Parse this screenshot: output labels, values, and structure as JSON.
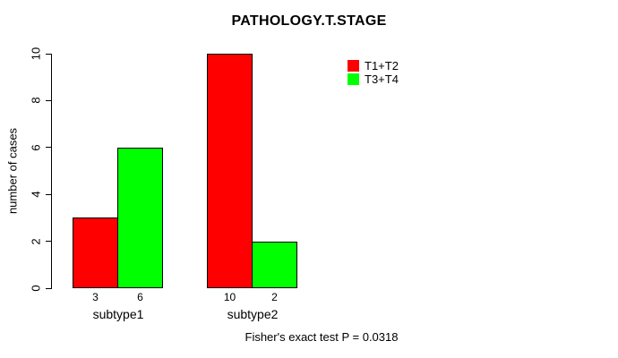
{
  "title": "PATHOLOGY.T.STAGE",
  "ylabel": "number of cases",
  "footer": "Fisher's exact test P = 0.0318",
  "colors": {
    "series1": "#FF0000",
    "series2": "#00FF00",
    "axis": "#000000",
    "background": "#FFFFFF",
    "text": "#000000"
  },
  "legend": {
    "items": [
      {
        "label": "T1+T2",
        "color": "#FF0000"
      },
      {
        "label": "T3+T4",
        "color": "#00FF00"
      }
    ]
  },
  "chart_data": {
    "type": "bar",
    "title": "PATHOLOGY.T.STAGE",
    "xlabel": "",
    "ylabel": "number of cases",
    "categories": [
      "subtype1",
      "subtype2"
    ],
    "series": [
      {
        "name": "T1+T2",
        "color": "#FF0000",
        "values": [
          3,
          10
        ]
      },
      {
        "name": "T3+T4",
        "color": "#00FF00",
        "values": [
          6,
          2
        ]
      }
    ],
    "bar_value_labels": [
      [
        "3",
        "6"
      ],
      [
        "10",
        "2"
      ]
    ],
    "yticks": [
      0,
      2,
      4,
      6,
      8,
      10
    ],
    "ylim": [
      0,
      10
    ],
    "grid": false,
    "legend_position": "top-right-inside",
    "annotation": "Fisher's exact test P = 0.0318"
  }
}
